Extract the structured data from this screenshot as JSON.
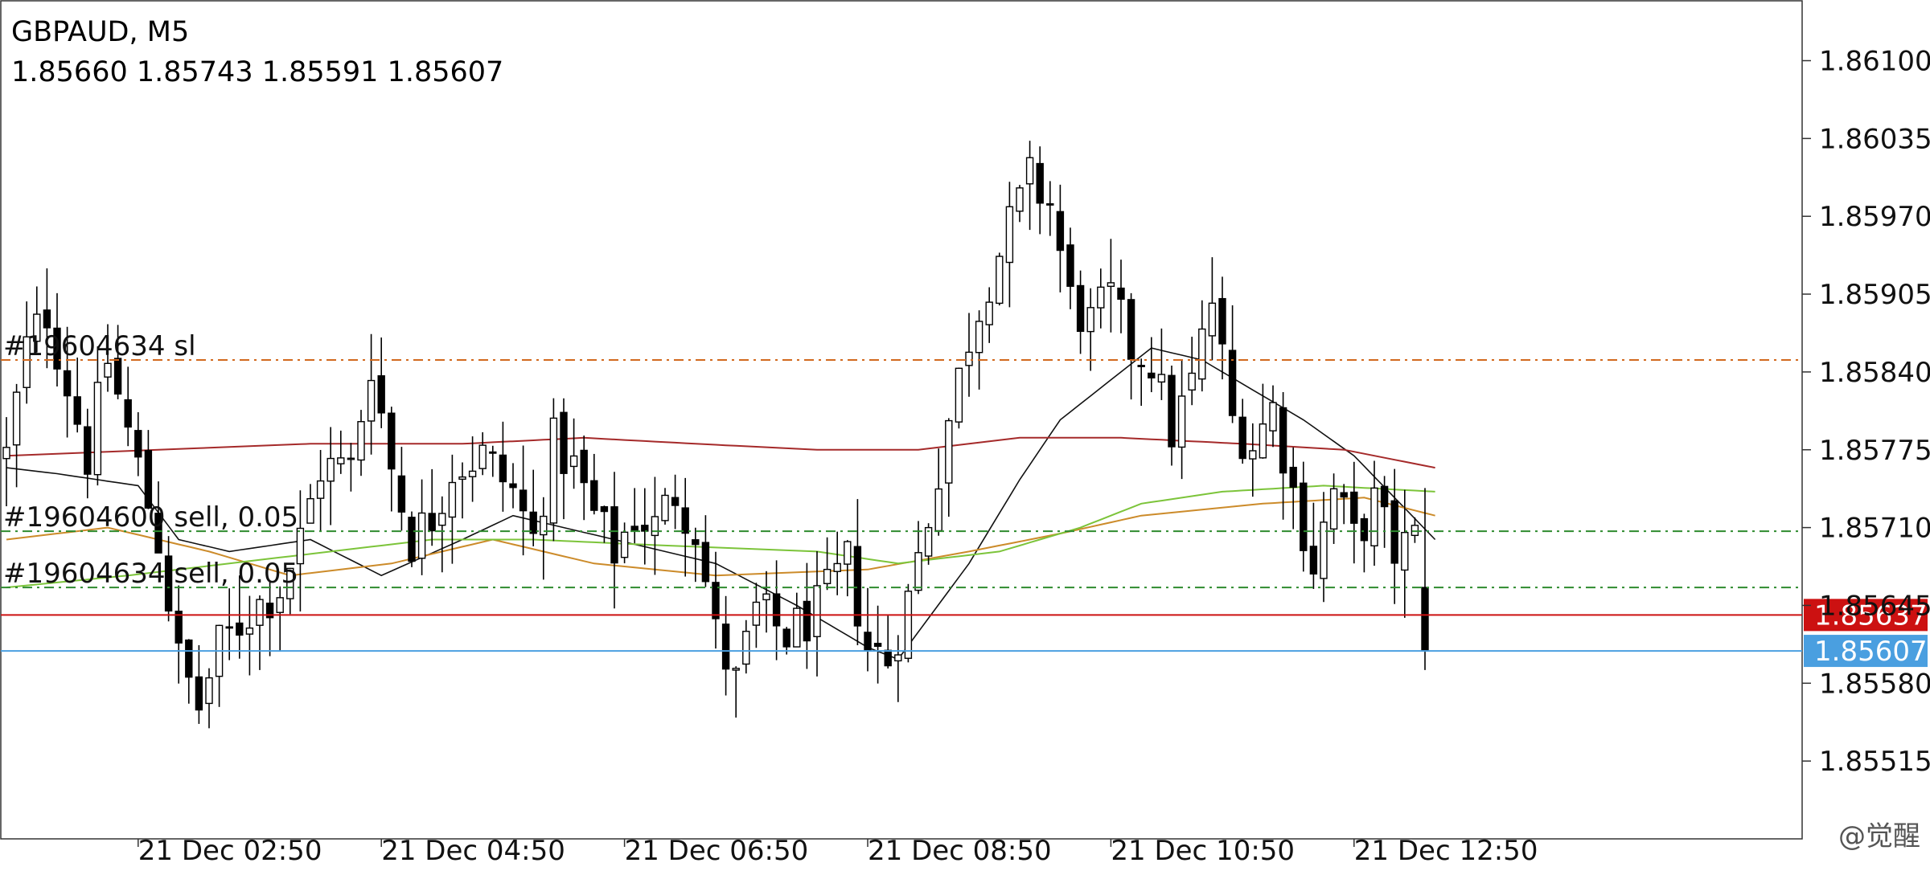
{
  "header": {
    "symbol": "GBPAUD, M5",
    "ohlc": "1.85660 1.85743 1.85591 1.85607"
  },
  "watermark": "@觉醒",
  "chart_data": {
    "type": "candlestick",
    "symbol": "GBPAUD",
    "timeframe": "M5",
    "ylim": [
      1.8545,
      1.8615
    ],
    "y_ticks": [
      "1.86100",
      "1.86035",
      "1.85970",
      "1.85905",
      "1.85840",
      "1.85775",
      "1.85710",
      "1.85645",
      "1.85580",
      "1.85515"
    ],
    "x_ticks": [
      {
        "label": "21 Dec 02:50",
        "bar": 13
      },
      {
        "label": "21 Dec 04:50",
        "bar": 37
      },
      {
        "label": "21 Dec 06:50",
        "bar": 61
      },
      {
        "label": "21 Dec 08:50",
        "bar": 85
      },
      {
        "label": "21 Dec 10:50",
        "bar": 109
      },
      {
        "label": "21 Dec 12:50",
        "bar": 133
      }
    ],
    "bar_count": 141,
    "price_lines": [
      {
        "name": "bid-line",
        "price": 1.85637,
        "label": "1.85637",
        "color": "#cc1111",
        "style": "solid"
      },
      {
        "name": "last-line",
        "price": 1.85607,
        "label": "1.85607",
        "color": "#4a9fe0",
        "style": "solid"
      }
    ],
    "order_lines": [
      {
        "name": "order-sl-line",
        "price": 1.8585,
        "label": "#19604634 sl",
        "color": "#d2691e"
      },
      {
        "name": "order-sell-line-1",
        "price": 1.85707,
        "label": "#19604600 sell, 0.05",
        "color": "#2e8b2e"
      },
      {
        "name": "order-sell-line-2",
        "price": 1.8566,
        "label": "#19604634 sell, 0.05",
        "color": "#2e8b2e"
      }
    ],
    "indicators": [
      {
        "name": "ma-fast",
        "color": "#111111",
        "anchors": [
          [
            0,
            1.8576
          ],
          [
            5,
            1.85755
          ],
          [
            13,
            1.85745
          ],
          [
            17,
            1.857
          ],
          [
            22,
            1.8569
          ],
          [
            30,
            1.857
          ],
          [
            37,
            1.8567
          ],
          [
            45,
            1.857
          ],
          [
            50,
            1.8572
          ],
          [
            60,
            1.857
          ],
          [
            70,
            1.8568
          ],
          [
            78,
            1.85645
          ],
          [
            85,
            1.8561
          ],
          [
            88,
            1.856
          ],
          [
            95,
            1.8568
          ],
          [
            100,
            1.8575
          ],
          [
            104,
            1.858
          ],
          [
            110,
            1.8584
          ],
          [
            113,
            1.8586
          ],
          [
            118,
            1.8585
          ],
          [
            122,
            1.8583
          ],
          [
            128,
            1.858
          ],
          [
            133,
            1.8577
          ],
          [
            141,
            1.857
          ]
        ]
      },
      {
        "name": "ma-orange",
        "color": "#cc8b2a",
        "anchors": [
          [
            0,
            1.857
          ],
          [
            10,
            1.8571
          ],
          [
            20,
            1.8569
          ],
          [
            28,
            1.8567
          ],
          [
            38,
            1.8568
          ],
          [
            48,
            1.857
          ],
          [
            58,
            1.8568
          ],
          [
            70,
            1.8567
          ],
          [
            85,
            1.85675
          ],
          [
            95,
            1.8569
          ],
          [
            104,
            1.85705
          ],
          [
            112,
            1.8572
          ],
          [
            124,
            1.8573
          ],
          [
            134,
            1.85735
          ],
          [
            141,
            1.8572
          ]
        ]
      },
      {
        "name": "ma-green",
        "color": "#7cc43a",
        "anchors": [
          [
            0,
            1.8566
          ],
          [
            12,
            1.8567
          ],
          [
            22,
            1.8568
          ],
          [
            32,
            1.8569
          ],
          [
            42,
            1.857
          ],
          [
            52,
            1.857
          ],
          [
            65,
            1.85695
          ],
          [
            80,
            1.8569
          ],
          [
            88,
            1.8568
          ],
          [
            98,
            1.8569
          ],
          [
            106,
            1.8571
          ],
          [
            112,
            1.8573
          ],
          [
            120,
            1.8574
          ],
          [
            130,
            1.85745
          ],
          [
            141,
            1.8574
          ]
        ]
      },
      {
        "name": "ma-red",
        "color": "#a52a2a",
        "anchors": [
          [
            0,
            1.8577
          ],
          [
            15,
            1.85775
          ],
          [
            30,
            1.8578
          ],
          [
            45,
            1.8578
          ],
          [
            57,
            1.85785
          ],
          [
            68,
            1.8578
          ],
          [
            80,
            1.85775
          ],
          [
            90,
            1.85775
          ],
          [
            100,
            1.85785
          ],
          [
            110,
            1.85785
          ],
          [
            122,
            1.8578
          ],
          [
            132,
            1.85775
          ],
          [
            141,
            1.8576
          ]
        ]
      }
    ],
    "anchors": [
      [
        0,
        1.8577
      ],
      [
        2,
        1.8586
      ],
      [
        4,
        1.8589
      ],
      [
        6,
        1.8583
      ],
      [
        8,
        1.8577
      ],
      [
        10,
        1.8585
      ],
      [
        13,
        1.8576
      ],
      [
        15,
        1.857
      ],
      [
        17,
        1.856
      ],
      [
        19,
        1.8556
      ],
      [
        21,
        1.8561
      ],
      [
        24,
        1.8564
      ],
      [
        27,
        1.8566
      ],
      [
        29,
        1.857
      ],
      [
        31,
        1.8576
      ],
      [
        34,
        1.8576
      ],
      [
        36,
        1.8585
      ],
      [
        38,
        1.8576
      ],
      [
        40,
        1.857
      ],
      [
        42,
        1.8572
      ],
      [
        44,
        1.8576
      ],
      [
        47,
        1.8577
      ],
      [
        50,
        1.8574
      ],
      [
        52,
        1.857
      ],
      [
        54,
        1.8578
      ],
      [
        56,
        1.8576
      ],
      [
        58,
        1.8572
      ],
      [
        60,
        1.8569
      ],
      [
        62,
        1.8572
      ],
      [
        64,
        1.8571
      ],
      [
        66,
        1.8574
      ],
      [
        68,
        1.8571
      ],
      [
        70,
        1.8562
      ],
      [
        72,
        1.8558
      ],
      [
        74,
        1.8564
      ],
      [
        77,
        1.8562
      ],
      [
        80,
        1.8564
      ],
      [
        83,
        1.8568
      ],
      [
        85,
        1.8561
      ],
      [
        87,
        1.856
      ],
      [
        89,
        1.8565
      ],
      [
        91,
        1.8572
      ],
      [
        93,
        1.858
      ],
      [
        95,
        1.8587
      ],
      [
        97,
        1.8592
      ],
      [
        99,
        1.8596
      ],
      [
        101,
        1.86
      ],
      [
        103,
        1.8598
      ],
      [
        105,
        1.859
      ],
      [
        107,
        1.8588
      ],
      [
        109,
        1.859
      ],
      [
        111,
        1.8586
      ],
      [
        113,
        1.8585
      ],
      [
        115,
        1.8579
      ],
      [
        117,
        1.8583
      ],
      [
        119,
        1.859
      ],
      [
        121,
        1.858
      ],
      [
        123,
        1.8578
      ],
      [
        125,
        1.8581
      ],
      [
        127,
        1.8574
      ],
      [
        129,
        1.8568
      ],
      [
        131,
        1.8574
      ],
      [
        133,
        1.857
      ],
      [
        135,
        1.8573
      ],
      [
        137,
        1.8569
      ],
      [
        139,
        1.857
      ],
      [
        140,
        1.85607
      ]
    ]
  }
}
